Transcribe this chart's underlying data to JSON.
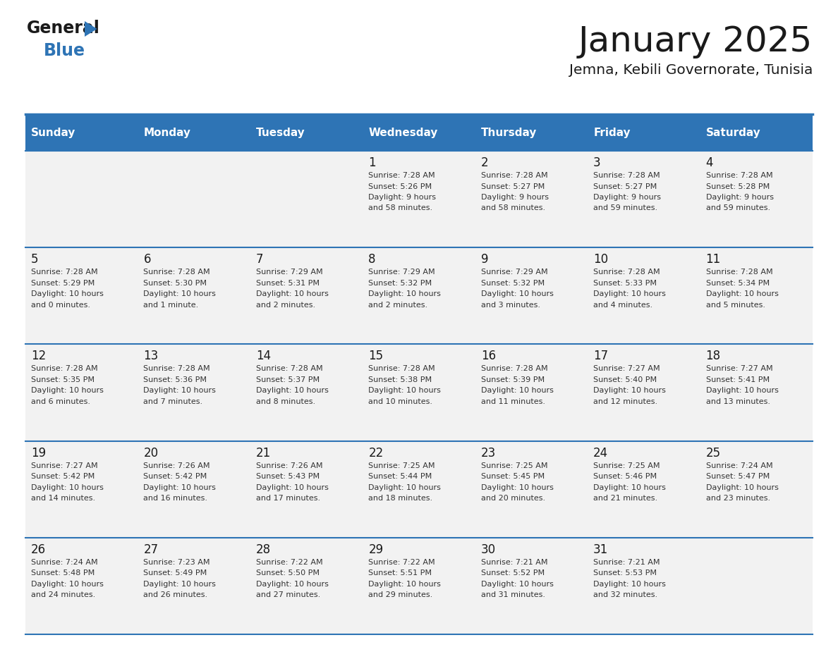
{
  "title": "January 2025",
  "subtitle": "Jemna, Kebili Governorate, Tunisia",
  "days_of_week": [
    "Sunday",
    "Monday",
    "Tuesday",
    "Wednesday",
    "Thursday",
    "Friday",
    "Saturday"
  ],
  "header_bg": "#2E74B5",
  "header_text": "#FFFFFF",
  "row_bg": "#F2F2F2",
  "empty_bg": "#E8E8E8",
  "cell_text": "#333333",
  "day_num_color": "#1a1a1a",
  "border_color": "#2E74B5",
  "logo_color": "#2E74B5",
  "calendar_data": [
    [
      {
        "day": null,
        "lines": []
      },
      {
        "day": null,
        "lines": []
      },
      {
        "day": null,
        "lines": []
      },
      {
        "day": 1,
        "lines": [
          "Sunrise: 7:28 AM",
          "Sunset: 5:26 PM",
          "Daylight: 9 hours",
          "and 58 minutes."
        ]
      },
      {
        "day": 2,
        "lines": [
          "Sunrise: 7:28 AM",
          "Sunset: 5:27 PM",
          "Daylight: 9 hours",
          "and 58 minutes."
        ]
      },
      {
        "day": 3,
        "lines": [
          "Sunrise: 7:28 AM",
          "Sunset: 5:27 PM",
          "Daylight: 9 hours",
          "and 59 minutes."
        ]
      },
      {
        "day": 4,
        "lines": [
          "Sunrise: 7:28 AM",
          "Sunset: 5:28 PM",
          "Daylight: 9 hours",
          "and 59 minutes."
        ]
      }
    ],
    [
      {
        "day": 5,
        "lines": [
          "Sunrise: 7:28 AM",
          "Sunset: 5:29 PM",
          "Daylight: 10 hours",
          "and 0 minutes."
        ]
      },
      {
        "day": 6,
        "lines": [
          "Sunrise: 7:28 AM",
          "Sunset: 5:30 PM",
          "Daylight: 10 hours",
          "and 1 minute."
        ]
      },
      {
        "day": 7,
        "lines": [
          "Sunrise: 7:29 AM",
          "Sunset: 5:31 PM",
          "Daylight: 10 hours",
          "and 2 minutes."
        ]
      },
      {
        "day": 8,
        "lines": [
          "Sunrise: 7:29 AM",
          "Sunset: 5:32 PM",
          "Daylight: 10 hours",
          "and 2 minutes."
        ]
      },
      {
        "day": 9,
        "lines": [
          "Sunrise: 7:29 AM",
          "Sunset: 5:32 PM",
          "Daylight: 10 hours",
          "and 3 minutes."
        ]
      },
      {
        "day": 10,
        "lines": [
          "Sunrise: 7:28 AM",
          "Sunset: 5:33 PM",
          "Daylight: 10 hours",
          "and 4 minutes."
        ]
      },
      {
        "day": 11,
        "lines": [
          "Sunrise: 7:28 AM",
          "Sunset: 5:34 PM",
          "Daylight: 10 hours",
          "and 5 minutes."
        ]
      }
    ],
    [
      {
        "day": 12,
        "lines": [
          "Sunrise: 7:28 AM",
          "Sunset: 5:35 PM",
          "Daylight: 10 hours",
          "and 6 minutes."
        ]
      },
      {
        "day": 13,
        "lines": [
          "Sunrise: 7:28 AM",
          "Sunset: 5:36 PM",
          "Daylight: 10 hours",
          "and 7 minutes."
        ]
      },
      {
        "day": 14,
        "lines": [
          "Sunrise: 7:28 AM",
          "Sunset: 5:37 PM",
          "Daylight: 10 hours",
          "and 8 minutes."
        ]
      },
      {
        "day": 15,
        "lines": [
          "Sunrise: 7:28 AM",
          "Sunset: 5:38 PM",
          "Daylight: 10 hours",
          "and 10 minutes."
        ]
      },
      {
        "day": 16,
        "lines": [
          "Sunrise: 7:28 AM",
          "Sunset: 5:39 PM",
          "Daylight: 10 hours",
          "and 11 minutes."
        ]
      },
      {
        "day": 17,
        "lines": [
          "Sunrise: 7:27 AM",
          "Sunset: 5:40 PM",
          "Daylight: 10 hours",
          "and 12 minutes."
        ]
      },
      {
        "day": 18,
        "lines": [
          "Sunrise: 7:27 AM",
          "Sunset: 5:41 PM",
          "Daylight: 10 hours",
          "and 13 minutes."
        ]
      }
    ],
    [
      {
        "day": 19,
        "lines": [
          "Sunrise: 7:27 AM",
          "Sunset: 5:42 PM",
          "Daylight: 10 hours",
          "and 14 minutes."
        ]
      },
      {
        "day": 20,
        "lines": [
          "Sunrise: 7:26 AM",
          "Sunset: 5:42 PM",
          "Daylight: 10 hours",
          "and 16 minutes."
        ]
      },
      {
        "day": 21,
        "lines": [
          "Sunrise: 7:26 AM",
          "Sunset: 5:43 PM",
          "Daylight: 10 hours",
          "and 17 minutes."
        ]
      },
      {
        "day": 22,
        "lines": [
          "Sunrise: 7:25 AM",
          "Sunset: 5:44 PM",
          "Daylight: 10 hours",
          "and 18 minutes."
        ]
      },
      {
        "day": 23,
        "lines": [
          "Sunrise: 7:25 AM",
          "Sunset: 5:45 PM",
          "Daylight: 10 hours",
          "and 20 minutes."
        ]
      },
      {
        "day": 24,
        "lines": [
          "Sunrise: 7:25 AM",
          "Sunset: 5:46 PM",
          "Daylight: 10 hours",
          "and 21 minutes."
        ]
      },
      {
        "day": 25,
        "lines": [
          "Sunrise: 7:24 AM",
          "Sunset: 5:47 PM",
          "Daylight: 10 hours",
          "and 23 minutes."
        ]
      }
    ],
    [
      {
        "day": 26,
        "lines": [
          "Sunrise: 7:24 AM",
          "Sunset: 5:48 PM",
          "Daylight: 10 hours",
          "and 24 minutes."
        ]
      },
      {
        "day": 27,
        "lines": [
          "Sunrise: 7:23 AM",
          "Sunset: 5:49 PM",
          "Daylight: 10 hours",
          "and 26 minutes."
        ]
      },
      {
        "day": 28,
        "lines": [
          "Sunrise: 7:22 AM",
          "Sunset: 5:50 PM",
          "Daylight: 10 hours",
          "and 27 minutes."
        ]
      },
      {
        "day": 29,
        "lines": [
          "Sunrise: 7:22 AM",
          "Sunset: 5:51 PM",
          "Daylight: 10 hours",
          "and 29 minutes."
        ]
      },
      {
        "day": 30,
        "lines": [
          "Sunrise: 7:21 AM",
          "Sunset: 5:52 PM",
          "Daylight: 10 hours",
          "and 31 minutes."
        ]
      },
      {
        "day": 31,
        "lines": [
          "Sunrise: 7:21 AM",
          "Sunset: 5:53 PM",
          "Daylight: 10 hours",
          "and 32 minutes."
        ]
      },
      {
        "day": null,
        "lines": []
      }
    ]
  ]
}
